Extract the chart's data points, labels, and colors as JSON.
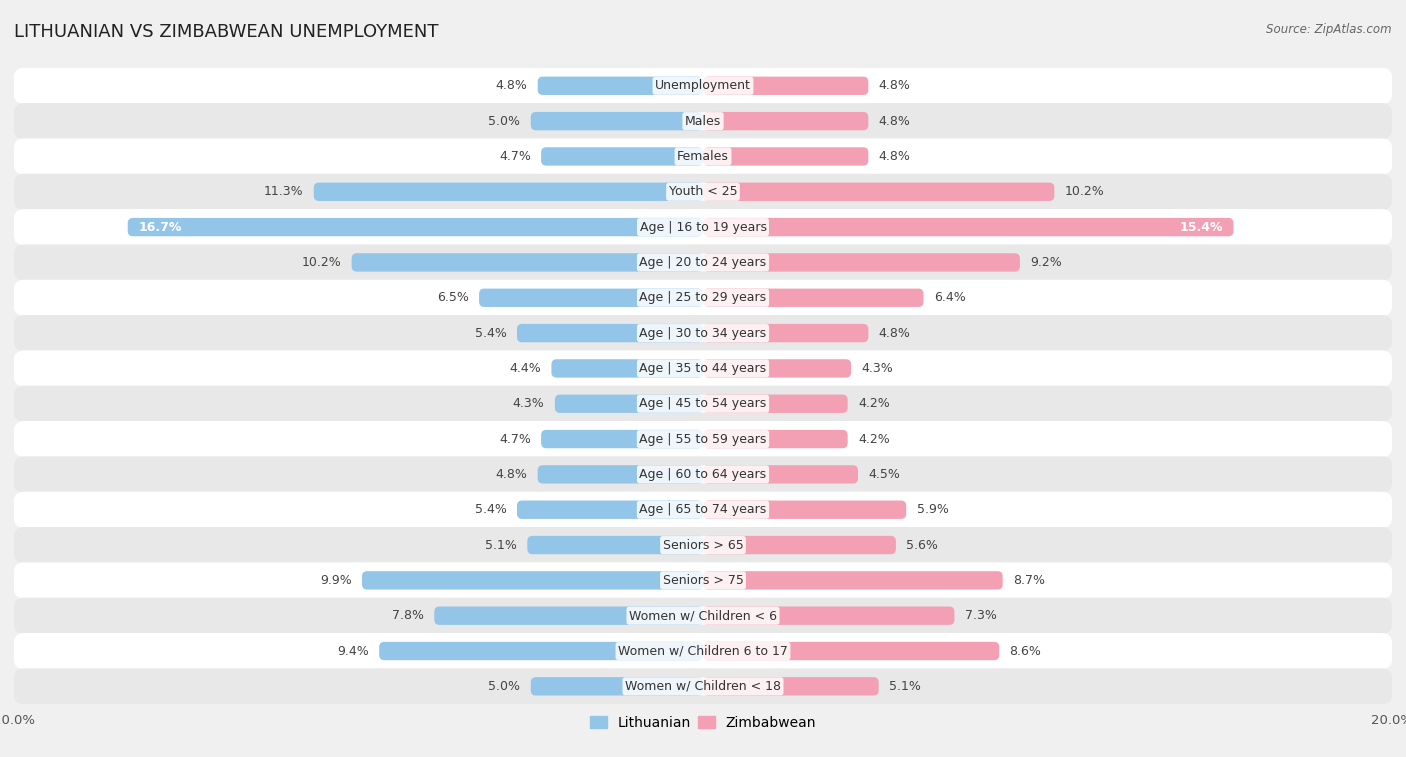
{
  "title": "LITHUANIAN VS ZIMBABWEAN UNEMPLOYMENT",
  "source": "Source: ZipAtlas.com",
  "categories": [
    "Unemployment",
    "Males",
    "Females",
    "Youth < 25",
    "Age | 16 to 19 years",
    "Age | 20 to 24 years",
    "Age | 25 to 29 years",
    "Age | 30 to 34 years",
    "Age | 35 to 44 years",
    "Age | 45 to 54 years",
    "Age | 55 to 59 years",
    "Age | 60 to 64 years",
    "Age | 65 to 74 years",
    "Seniors > 65",
    "Seniors > 75",
    "Women w/ Children < 6",
    "Women w/ Children 6 to 17",
    "Women w/ Children < 18"
  ],
  "lithuanian": [
    4.8,
    5.0,
    4.7,
    11.3,
    16.7,
    10.2,
    6.5,
    5.4,
    4.4,
    4.3,
    4.7,
    4.8,
    5.4,
    5.1,
    9.9,
    7.8,
    9.4,
    5.0
  ],
  "zimbabwean": [
    4.8,
    4.8,
    4.8,
    10.2,
    15.4,
    9.2,
    6.4,
    4.8,
    4.3,
    4.2,
    4.2,
    4.5,
    5.9,
    5.6,
    8.7,
    7.3,
    8.6,
    5.1
  ],
  "max_val": 20.0,
  "lithuanian_color": "#92c5e8",
  "zimbabwean_color": "#f4a0b4",
  "bar_height": 0.52,
  "bg_color": "#f0f0f0",
  "row_colors_odd": "#ffffff",
  "row_colors_even": "#e8e8e8",
  "label_fontsize": 9.0,
  "category_fontsize": 9.0,
  "title_fontsize": 13,
  "white_label_threshold": 14.0
}
